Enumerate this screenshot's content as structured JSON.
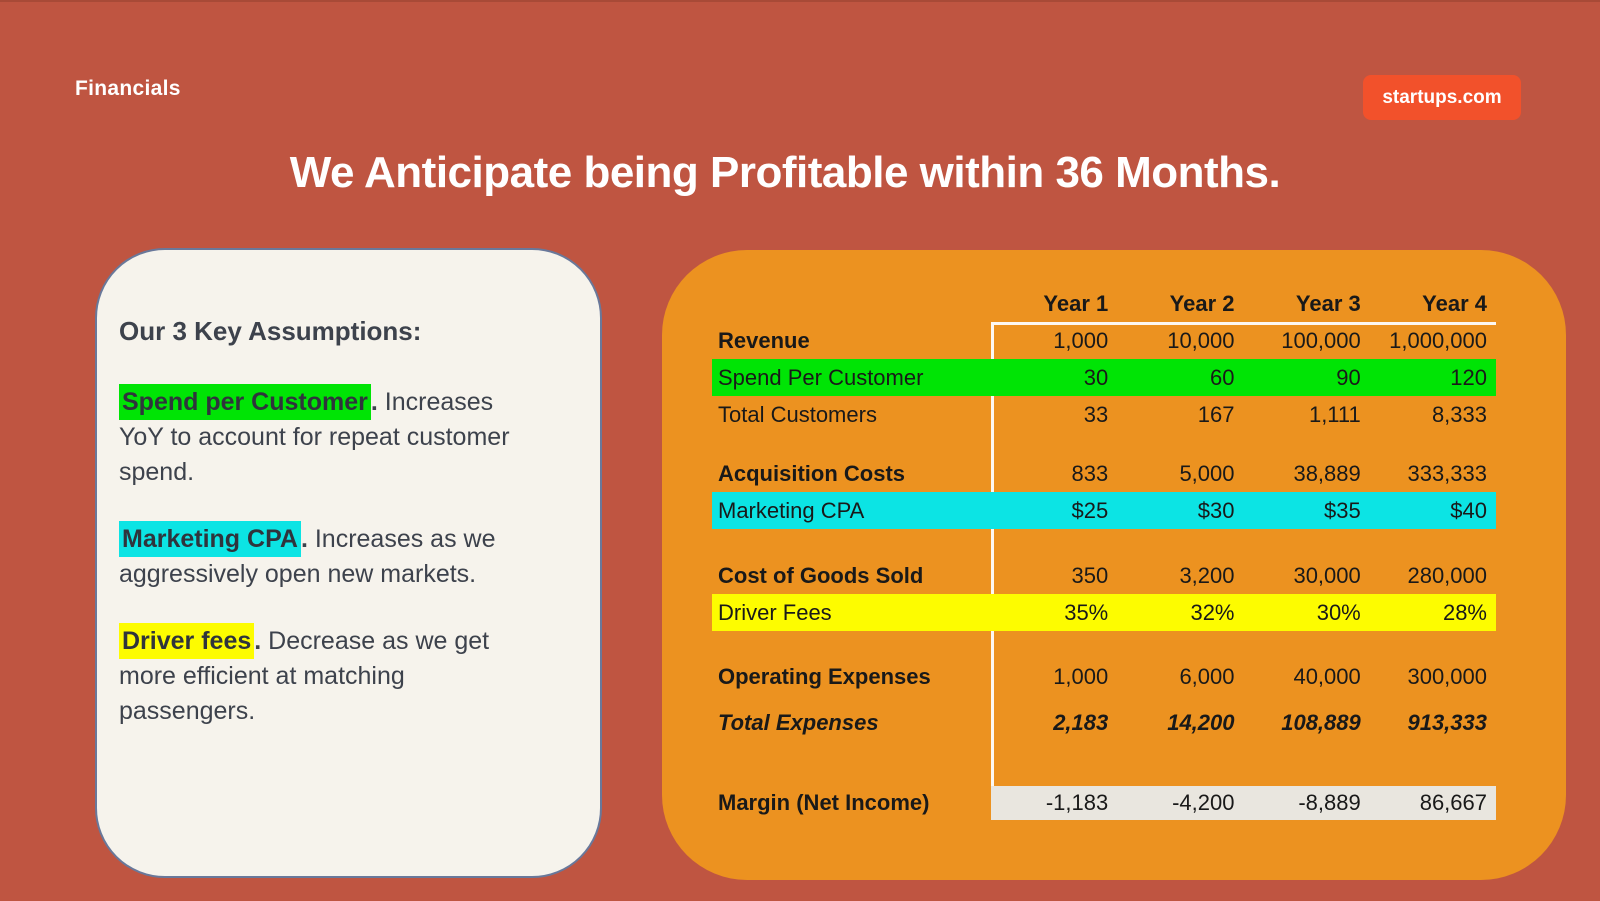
{
  "page": {
    "label": "Financials",
    "brand": "startups.com",
    "title": "We Anticipate being Profitable within 36 Months."
  },
  "colors": {
    "bg": "#bf5541",
    "bgTopLine": "#a84a37",
    "panel": "#f6f3ec",
    "panelBorder": "#69789a",
    "orange": "#ec9220",
    "brand": "#f2512b",
    "green": "#00e405",
    "cyan": "#0ce4e4",
    "yellow": "#fdfc00",
    "marginBand": "#e9e6df",
    "tableLine": "#fdf8f2",
    "textDark": "#3d424c",
    "tableText": "#191919",
    "white": "#ffffff"
  },
  "assumptions": {
    "heading": "Our 3 Key Assumptions:",
    "items": [
      {
        "term": "Spend per Customer",
        "highlight": "green",
        "punct": ".",
        "desc": "Increases YoY to account for repeat customer spend."
      },
      {
        "term": "Marketing CPA",
        "highlight": "cyan",
        "punct": ".",
        "desc": "Increases as we aggressively open new markets."
      },
      {
        "term": "Driver fees",
        "highlight": "yellow",
        "punct": ".",
        "desc": "Decrease as we get more efficient at matching passengers."
      }
    ]
  },
  "table": {
    "columns": [
      "Year 1",
      "Year 2",
      "Year 3",
      "Year 4"
    ],
    "rows": [
      {
        "label": "Revenue",
        "values": [
          "1,000",
          "10,000",
          "100,000",
          "1,000,000"
        ],
        "bold": true
      },
      {
        "label": "Spend Per Customer",
        "values": [
          "30",
          "60",
          "90",
          "120"
        ],
        "highlight": "green"
      },
      {
        "label": "Total Customers",
        "values": [
          "33",
          "167",
          "1,111",
          "8,333"
        ]
      },
      {
        "gap": "sm"
      },
      {
        "label": "Acquisition Costs",
        "values": [
          "833",
          "5,000",
          "38,889",
          "333,333"
        ],
        "bold": true
      },
      {
        "label": "Marketing CPA",
        "values": [
          "$25",
          "$30",
          "$35",
          "$40"
        ],
        "highlight": "cyan"
      },
      {
        "gap": "md"
      },
      {
        "label": "Cost of Goods Sold",
        "values": [
          "350",
          "3,200",
          "30,000",
          "280,000"
        ],
        "bold": true
      },
      {
        "label": "Driver Fees",
        "values": [
          "35%",
          "32%",
          "30%",
          "28%"
        ],
        "highlight": "yellow"
      },
      {
        "gap": "md2"
      },
      {
        "label": "Operating Expenses",
        "values": [
          "1,000",
          "6,000",
          "40,000",
          "300,000"
        ],
        "bold": true
      },
      {
        "gap": "xs"
      },
      {
        "label": "Total Expenses",
        "values": [
          "2,183",
          "14,200",
          "108,889",
          "913,333"
        ],
        "bold": true,
        "italic": true
      },
      {
        "gap": "lg"
      },
      {
        "label": "Margin (Net Income)",
        "values": [
          "-1,183",
          "-4,200",
          "-8,889",
          "86,667"
        ],
        "bold": true,
        "highlight": "margin"
      }
    ]
  }
}
